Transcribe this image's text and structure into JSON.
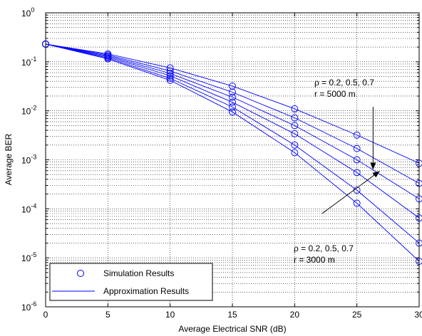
{
  "chart_data": {
    "type": "line",
    "xlabel": "Average Electrical SNR (dB)",
    "ylabel": "Average BER",
    "xlim": [
      0,
      30
    ],
    "ylim": [
      1e-06,
      1
    ],
    "yscale": "log",
    "grid": true,
    "x_ticks": [
      0,
      5,
      10,
      15,
      20,
      25,
      30
    ],
    "x_tick_labels": [
      "0",
      "5",
      "10",
      "15",
      "20",
      "25",
      "30"
    ],
    "y_ticks": [
      {
        "value": 1,
        "label_base": "10",
        "label_exp": "0"
      },
      {
        "value": 0.1,
        "label_base": "10",
        "label_exp": "-1"
      },
      {
        "value": 0.01,
        "label_base": "10",
        "label_exp": "-2"
      },
      {
        "value": 0.001,
        "label_base": "10",
        "label_exp": "-3"
      },
      {
        "value": 0.0001,
        "label_base": "10",
        "label_exp": "-4"
      },
      {
        "value": 1e-05,
        "label_base": "10",
        "label_exp": "-5"
      },
      {
        "value": 1e-06,
        "label_base": "10",
        "label_exp": "-6"
      }
    ],
    "line_color": "#0000ff",
    "legend": {
      "position": "bottom-left",
      "entries": [
        {
          "marker": "circle",
          "label": "Simulation Results"
        },
        {
          "marker": "line",
          "label": "Approximation Results"
        }
      ]
    },
    "annotations": [
      {
        "lines": [
          "ρ = 0.2, 0.5, 0.7",
          "r = 5000 m"
        ],
        "arrow_from": [
          26.3,
          0.012
        ],
        "arrow_to": [
          26.3,
          0.00065
        ]
      },
      {
        "lines": [
          "ρ = 0.2, 0.5, 0.7",
          "r = 3000 m"
        ],
        "arrow_from": [
          22.2,
          8e-05
        ],
        "arrow_to": [
          26.8,
          0.00058
        ]
      }
    ],
    "x": [
      0,
      5,
      10,
      15,
      20,
      25,
      30
    ],
    "series": [
      {
        "values": [
          0.23,
          0.145,
          0.075,
          0.032,
          0.011,
          0.0032,
          0.00085
        ]
      },
      {
        "values": [
          0.23,
          0.138,
          0.065,
          0.024,
          0.0072,
          0.0017,
          0.00033
        ]
      },
      {
        "values": [
          0.23,
          0.132,
          0.058,
          0.019,
          0.005,
          0.001,
          0.00016
        ]
      },
      {
        "values": [
          0.23,
          0.126,
          0.052,
          0.015,
          0.0034,
          0.00055,
          6.5e-05
        ]
      },
      {
        "values": [
          0.23,
          0.12,
          0.046,
          0.012,
          0.002,
          0.00024,
          2e-05
        ]
      },
      {
        "values": [
          0.23,
          0.115,
          0.042,
          0.0095,
          0.0014,
          0.00013,
          8.5e-06
        ]
      }
    ]
  }
}
